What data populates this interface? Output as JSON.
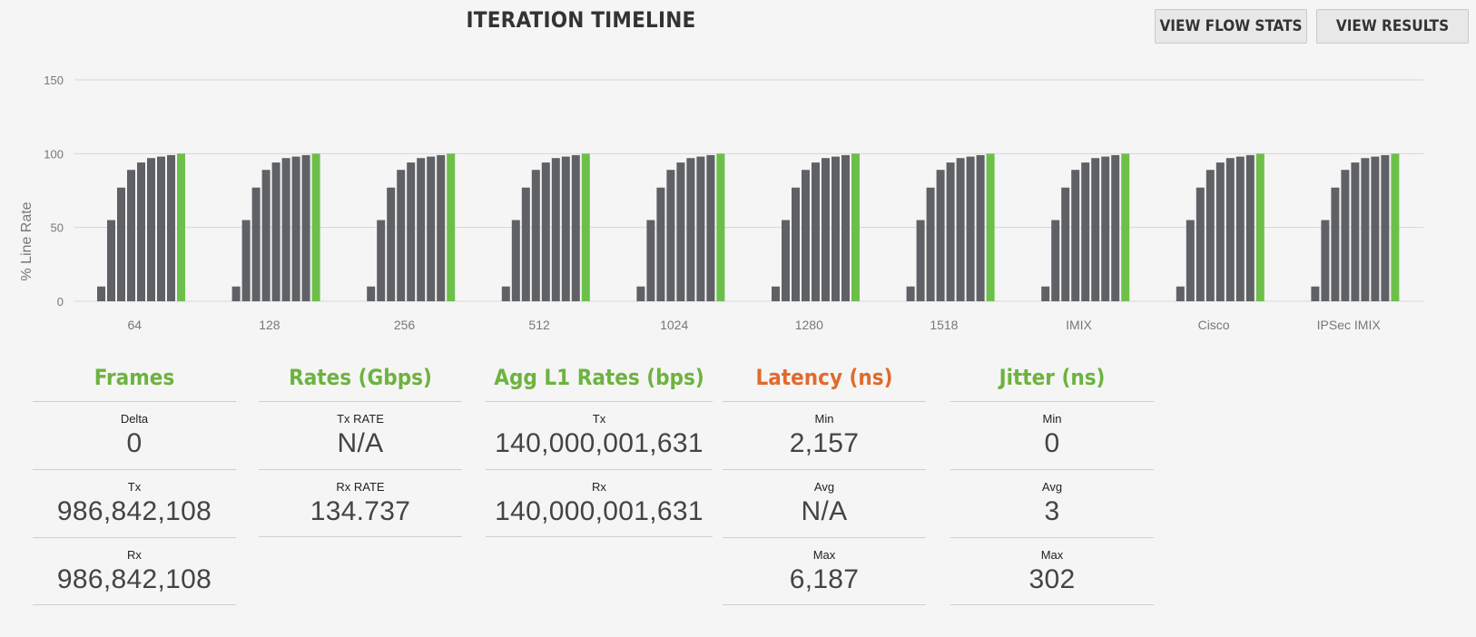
{
  "header": {
    "title": "ITERATION TIMELINE",
    "view_flow_stats": "VIEW FLOW STATS",
    "view_results": "VIEW RESULTS"
  },
  "colors": {
    "bar": "#5f6166",
    "bar_final": "#6cc04a",
    "accent_green": "#6db33f",
    "accent_orange": "#e06a2c"
  },
  "chart_data": {
    "type": "bar",
    "ylabel": "% Line Rate",
    "yticks": [
      0,
      50,
      100,
      150
    ],
    "ylim": [
      0,
      150
    ],
    "grid": true,
    "categories": [
      "64",
      "128",
      "256",
      "512",
      "1024",
      "1280",
      "1518",
      "IMIX",
      "Cisco",
      "IPSec IMIX"
    ],
    "iterations_per_category": [
      10,
      55,
      77,
      89,
      94,
      97,
      98,
      99,
      100
    ],
    "final_iteration_highlighted": true
  },
  "stats": {
    "frames": {
      "title": "Frames",
      "rows": [
        {
          "label": "Delta",
          "value": "0"
        },
        {
          "label": "Tx",
          "value": "986,842,108"
        },
        {
          "label": "Rx",
          "value": "986,842,108"
        }
      ]
    },
    "rates": {
      "title": "Rates (Gbps)",
      "rows": [
        {
          "label": "Tx RATE",
          "value": "N/A"
        },
        {
          "label": "Rx RATE",
          "value": "134.737"
        }
      ]
    },
    "agg": {
      "title": "Agg L1 Rates (bps)",
      "rows": [
        {
          "label": "Tx",
          "value": "140,000,001,631"
        },
        {
          "label": "Rx",
          "value": "140,000,001,631"
        }
      ]
    },
    "latency": {
      "title": "Latency (ns)",
      "rows": [
        {
          "label": "Min",
          "value": "2,157"
        },
        {
          "label": "Avg",
          "value": "N/A"
        },
        {
          "label": "Max",
          "value": "6,187"
        }
      ]
    },
    "jitter": {
      "title": "Jitter (ns)",
      "rows": [
        {
          "label": "Min",
          "value": "0"
        },
        {
          "label": "Avg",
          "value": "3"
        },
        {
          "label": "Max",
          "value": "302"
        }
      ]
    }
  }
}
